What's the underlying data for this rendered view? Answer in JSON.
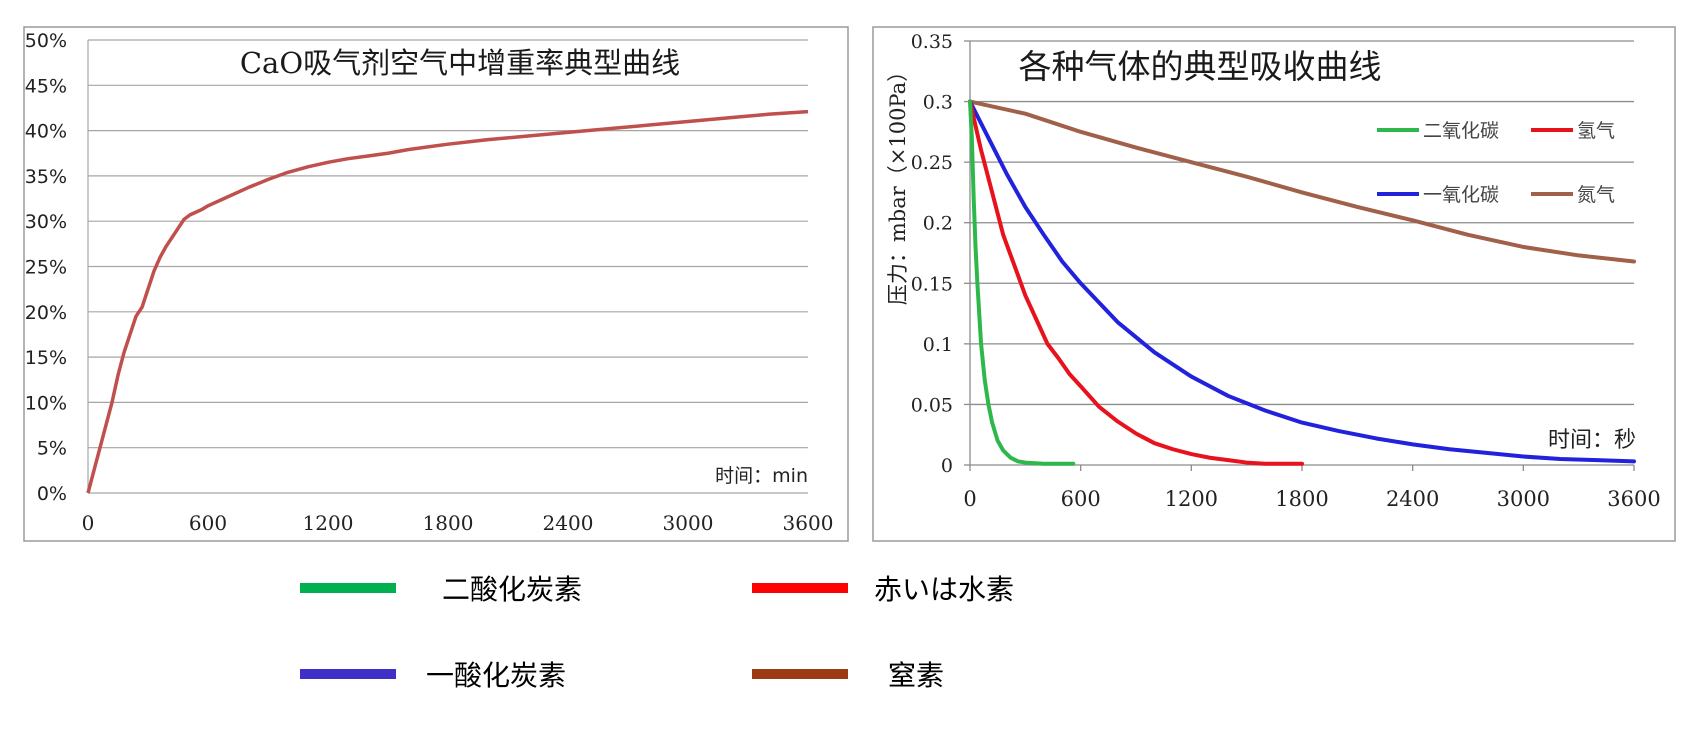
{
  "chart_data": [
    {
      "type": "line",
      "title": "CaO吸气剂空气中增重率典型曲线",
      "xlabel": "时间：min",
      "ylabel": "",
      "xlim": [
        0,
        3600
      ],
      "ylim": [
        0,
        50
      ],
      "x_ticks": [
        "0",
        "600",
        "1200",
        "1800",
        "2400",
        "3000",
        "3600"
      ],
      "y_ticks": [
        "0%",
        "5%",
        "10%",
        "15%",
        "20%",
        "25%",
        "30%",
        "35%",
        "40%",
        "45%",
        "50%"
      ],
      "grid": "horizontal",
      "colors": {
        "series": "#c0504d"
      },
      "series": [
        {
          "name": "",
          "x": [
            0,
            30,
            60,
            90,
            120,
            150,
            180,
            210,
            240,
            270,
            300,
            330,
            360,
            390,
            420,
            450,
            480,
            510,
            540,
            570,
            600,
            700,
            800,
            900,
            1000,
            1100,
            1200,
            1300,
            1400,
            1500,
            1600,
            1700,
            1800,
            2000,
            2200,
            2400,
            2600,
            2800,
            3000,
            3200,
            3400,
            3600
          ],
          "values": [
            0,
            2.5,
            5,
            7.5,
            10,
            13,
            15.5,
            17.5,
            19.5,
            20.5,
            22.5,
            24.5,
            26,
            27.2,
            28.2,
            29.2,
            30.2,
            30.7,
            31,
            31.3,
            31.7,
            32.7,
            33.7,
            34.6,
            35.4,
            36,
            36.5,
            36.9,
            37.2,
            37.5,
            37.9,
            38.2,
            38.5,
            39,
            39.4,
            39.8,
            40.2,
            40.6,
            41,
            41.4,
            41.8,
            42.1
          ]
        }
      ]
    },
    {
      "type": "line",
      "title": "各种气体的典型吸收曲线",
      "xlabel": "时间：秒",
      "ylabel": "压力：mbar（×100Pa）",
      "xlim": [
        0,
        3600
      ],
      "ylim": [
        0,
        0.35
      ],
      "x_ticks": [
        "0",
        "600",
        "1200",
        "1800",
        "2400",
        "3000",
        "3600"
      ],
      "y_ticks": [
        "0",
        "0.05",
        "0.1",
        "0.15",
        "0.2",
        "0.25",
        "0.3",
        "0.35"
      ],
      "grid": "horizontal",
      "legend_position": "top-right",
      "series": [
        {
          "name": "二氧化碳",
          "color": "#2eb84b",
          "x": [
            0,
            10,
            20,
            30,
            40,
            60,
            80,
            100,
            120,
            150,
            180,
            220,
            260,
            300,
            400,
            500,
            560
          ],
          "values": [
            0.3,
            0.27,
            0.22,
            0.18,
            0.15,
            0.1,
            0.07,
            0.05,
            0.035,
            0.02,
            0.012,
            0.006,
            0.003,
            0.002,
            0.001,
            0.001,
            0.001
          ]
        },
        {
          "name": "氢气",
          "color": "#e8121d",
          "x": [
            0,
            60,
            120,
            180,
            240,
            300,
            360,
            420,
            480,
            540,
            600,
            700,
            800,
            900,
            1000,
            1100,
            1200,
            1300,
            1400,
            1500,
            1600,
            1700,
            1800
          ],
          "values": [
            0.3,
            0.26,
            0.225,
            0.19,
            0.165,
            0.14,
            0.12,
            0.1,
            0.088,
            0.075,
            0.065,
            0.048,
            0.036,
            0.026,
            0.018,
            0.013,
            0.009,
            0.006,
            0.004,
            0.002,
            0.001,
            0.001,
            0.001
          ]
        },
        {
          "name": "一氧化碳",
          "color": "#2222dd",
          "x": [
            0,
            100,
            200,
            300,
            400,
            500,
            600,
            800,
            1000,
            1200,
            1400,
            1600,
            1800,
            2000,
            2200,
            2400,
            2600,
            2800,
            3000,
            3200,
            3400,
            3600
          ],
          "values": [
            0.3,
            0.27,
            0.24,
            0.213,
            0.19,
            0.168,
            0.15,
            0.118,
            0.093,
            0.073,
            0.057,
            0.045,
            0.035,
            0.028,
            0.022,
            0.017,
            0.013,
            0.01,
            0.007,
            0.005,
            0.004,
            0.003
          ]
        },
        {
          "name": "氮气",
          "color": "#a0604a",
          "x": [
            0,
            300,
            600,
            900,
            1200,
            1500,
            1800,
            2100,
            2400,
            2700,
            3000,
            3300,
            3600
          ],
          "values": [
            0.3,
            0.29,
            0.275,
            0.262,
            0.25,
            0.238,
            0.225,
            0.213,
            0.202,
            0.19,
            0.18,
            0.173,
            0.168
          ]
        }
      ]
    }
  ],
  "bottom_legend": [
    {
      "label": "二酸化炭素",
      "color": "#00b050"
    },
    {
      "label": "赤いは水素",
      "color": "#ff0000"
    },
    {
      "label": "一酸化炭素",
      "color": "#4030c8"
    },
    {
      "label": "窒素",
      "color": "#9c3b14"
    }
  ]
}
